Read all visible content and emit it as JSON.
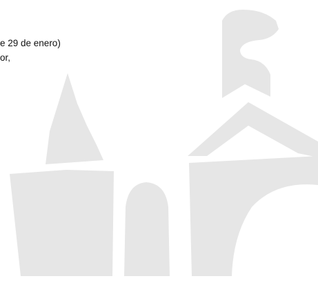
{
  "document": {
    "lines": [
      "e 29 de enero)",
      "or,"
    ]
  }
}
